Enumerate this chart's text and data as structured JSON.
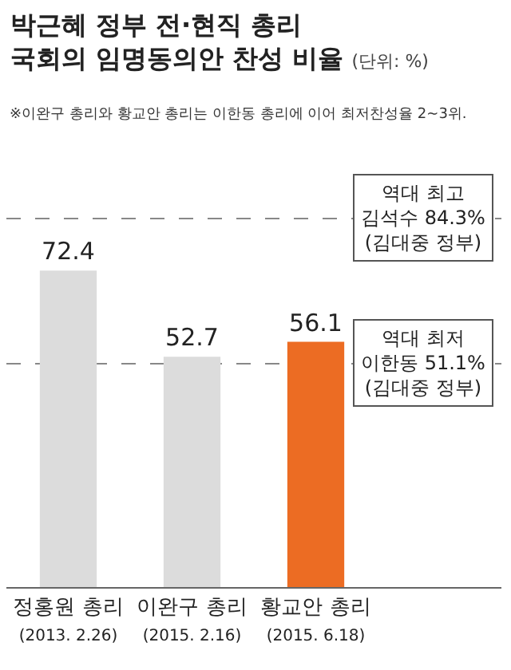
{
  "chart_data": {
    "type": "bar",
    "title": "박근혜 정부 전·현직 총리\n국회의 임명동의안 찬성 비율",
    "subtitle": "(단위: %)",
    "annotations": [
      "※이완구 총리와 황교안 총리는 이한동 총리에 이어 최저찬성율 2~3위."
    ],
    "categories": [
      "정홍원 총리\n(2013. 2.26)",
      "이완구 총리\n(2015. 2.16)",
      "황교안 총리\n(2015. 6.18)"
    ],
    "values": [
      72.4,
      52.7,
      56.1
    ],
    "colors": [
      "#dcdcdc",
      "#dcdcdc",
      "#ec6c23"
    ],
    "data_labels": true,
    "ref_lines": [
      {
        "axis": "y",
        "value": 84.3,
        "label": "역대 최고\n김석수 84.3%\n(김대중 정부)",
        "color": "#888888",
        "line_style": "dashed"
      },
      {
        "axis": "y",
        "value": 51.1,
        "label": "역대 최저\n이한동 51.1%\n(김대중 정부)",
        "color": "#888888",
        "line_style": "dashed"
      }
    ]
  }
}
